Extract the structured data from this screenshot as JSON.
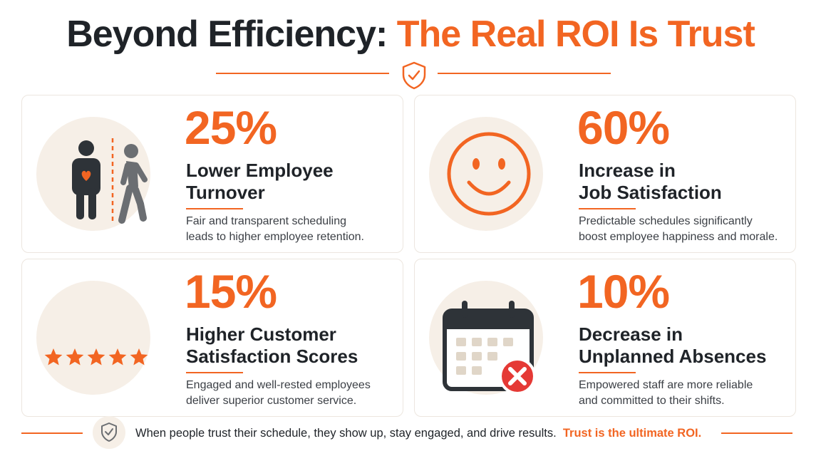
{
  "header": {
    "title_part1": "Beyond Efficiency: ",
    "title_part2": "The Real ROI Is Trust",
    "icon": "shield-check-icon",
    "accent_color": "#f26522"
  },
  "cards": [
    {
      "stat": "25%",
      "heading_line1": "Lower Employee",
      "heading_line2": "Turnover",
      "desc_line1": "Fair and transparent scheduling",
      "desc_line2": "leads to higher employee retention.",
      "icon": "employee-staying-leaving-icon"
    },
    {
      "stat": "60%",
      "heading_line1": "Increase in",
      "heading_line2": "Job Satisfaction",
      "desc_line1": "Predictable schedules significantly",
      "desc_line2": "boost employee happiness and morale.",
      "icon": "smiley-face-icon"
    },
    {
      "stat": "15%",
      "heading_line1": "Higher Customer",
      "heading_line2": "Satisfaction Scores",
      "desc_line1": "Engaged and well-rested employees",
      "desc_line2": "deliver superior customer service.",
      "icon": "five-stars-icon",
      "rating": 5
    },
    {
      "stat": "10%",
      "heading_line1": "Decrease in",
      "heading_line2": "Unplanned Absences",
      "desc_line1": "Empowered staff are more reliable",
      "desc_line2": "and committed to their shifts.",
      "icon": "calendar-cancel-icon"
    }
  ],
  "footer": {
    "text": "When people trust their schedule, they show up, stay engaged, and drive results.",
    "emphasis": "Trust is the ultimate ROI.",
    "icon": "shield-check-icon"
  },
  "colors": {
    "accent": "#f26522",
    "dark": "#1f2328",
    "circle_bg": "#f6efe7",
    "card_border": "#ece6df",
    "cancel_red": "#e53935"
  }
}
